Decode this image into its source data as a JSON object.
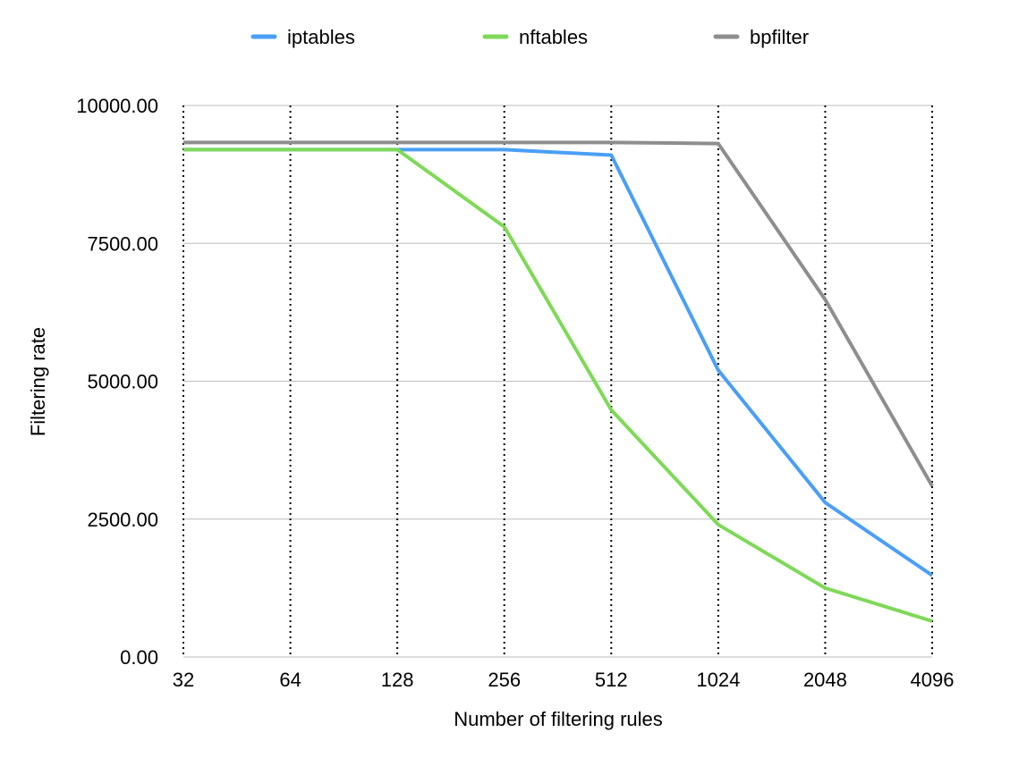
{
  "chart_data": {
    "type": "line",
    "title": "",
    "xlabel": "Number of filtering rules",
    "ylabel": "Filtering rate",
    "categories": [
      "32",
      "64",
      "128",
      "256",
      "512",
      "1024",
      "2048",
      "4096"
    ],
    "ylim": [
      0,
      10000
    ],
    "yticks": [
      0,
      2500,
      5000,
      7500,
      10000
    ],
    "ytick_labels": [
      "0.00",
      "2500.00",
      "5000.00",
      "7500.00",
      "10000.00"
    ],
    "grid": {
      "horizontal": "solid light gray",
      "vertical": "dotted black"
    },
    "legend_position": "top-center",
    "series": [
      {
        "name": "iptables",
        "color": "#4A9FF5",
        "values": [
          9200,
          9200,
          9200,
          9200,
          9100,
          5200,
          2800,
          1480
        ]
      },
      {
        "name": "nftables",
        "color": "#7ED957",
        "values": [
          9200,
          9200,
          9200,
          7800,
          4480,
          2400,
          1250,
          650
        ]
      },
      {
        "name": "bpfilter",
        "color": "#8E8E8E",
        "values": [
          9330,
          9330,
          9330,
          9330,
          9330,
          9310,
          6480,
          3100
        ]
      }
    ]
  }
}
